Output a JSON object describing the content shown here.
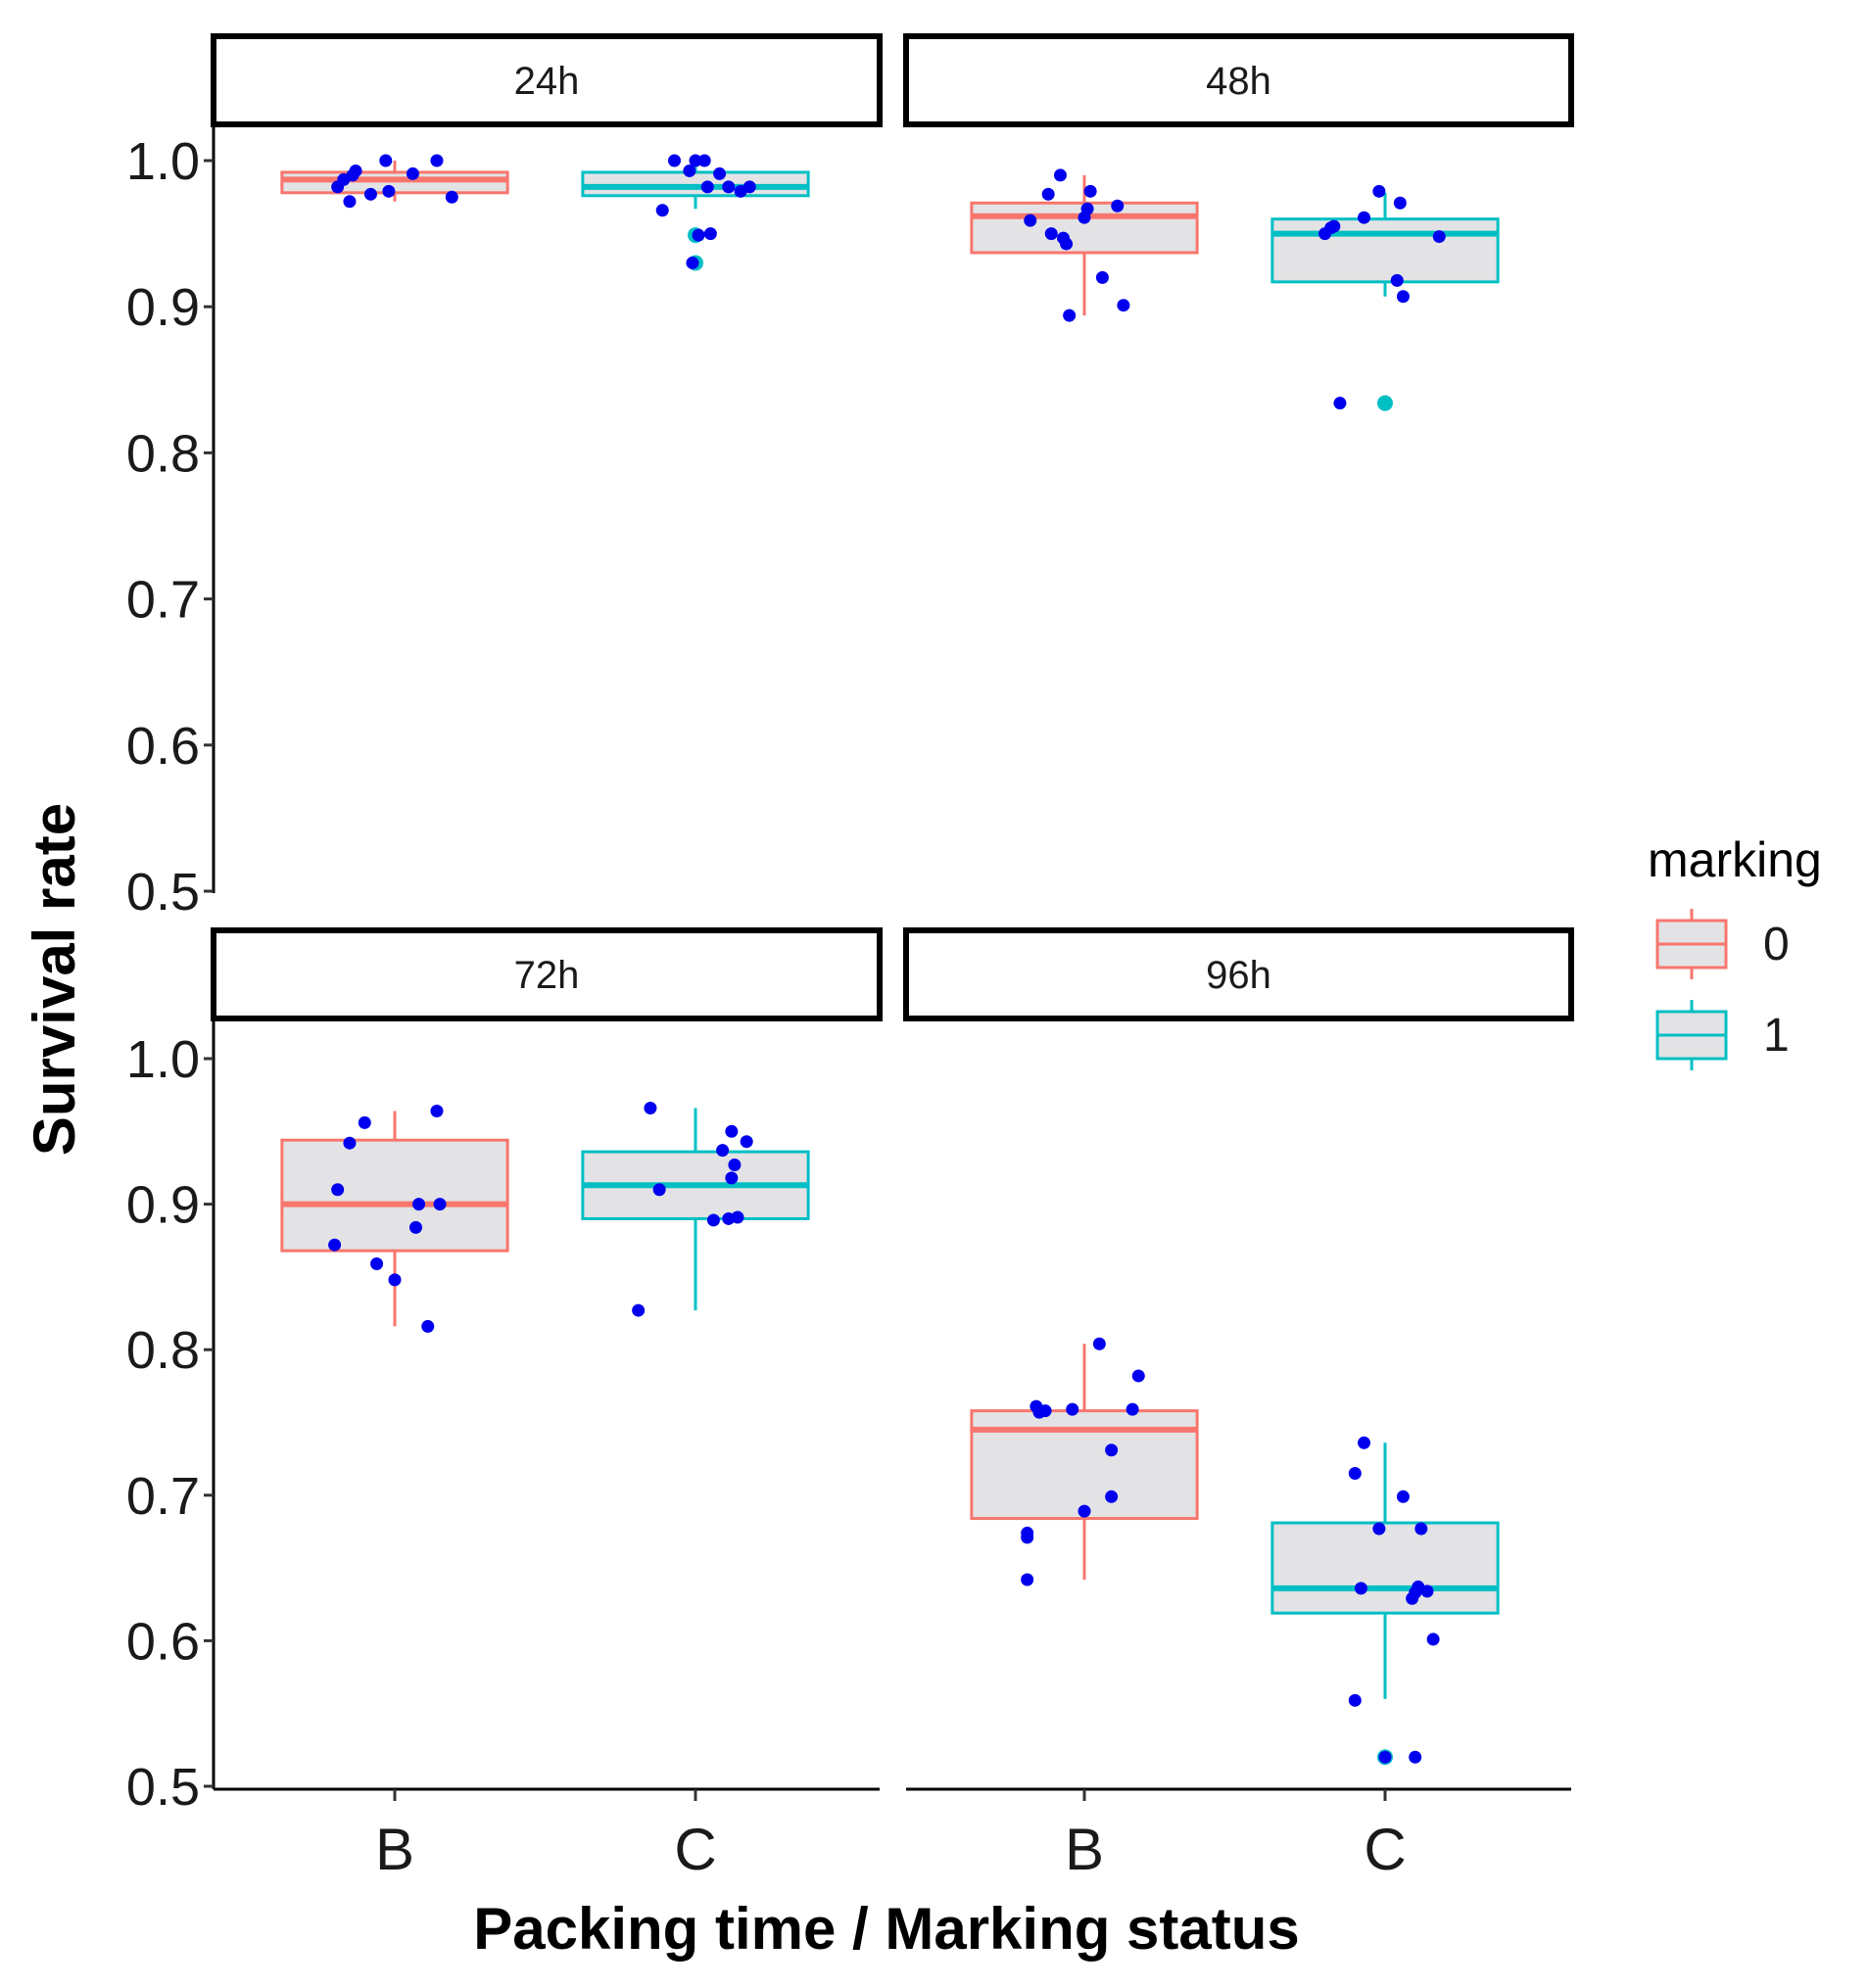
{
  "chart_data": {
    "type": "boxplot",
    "xlabel": "Packing time / Marking status",
    "ylabel": "Survival rate",
    "ylim": [
      0.5,
      1.0
    ],
    "yticks": [
      "0.5",
      "0.6",
      "0.7",
      "0.8",
      "0.9",
      "1.0"
    ],
    "categories": [
      "B",
      "C"
    ],
    "legend": {
      "title": "marking",
      "placement": "right",
      "entries": [
        {
          "label": "0",
          "color": "#F8766D"
        },
        {
          "label": "1",
          "color": "#00BFC4"
        }
      ]
    },
    "box_fill": "#E3E3E5",
    "point_color": "#0000EE",
    "panels": [
      {
        "label": "24h",
        "boxes": [
          {
            "category": "B",
            "marking": "0",
            "whisker_low": 0.972,
            "q1": 0.978,
            "median": 0.987,
            "q3": 0.992,
            "whisker_high": 1.0,
            "outliers": []
          },
          {
            "category": "C",
            "marking": "1",
            "whisker_low": 0.967,
            "q1": 0.976,
            "median": 0.982,
            "q3": 0.992,
            "whisker_high": 1.0,
            "outliers": [
              0.949,
              0.93
            ]
          }
        ],
        "points": [
          {
            "category": "B",
            "dx": -0.19,
            "y": 0.982
          },
          {
            "category": "B",
            "dx": -0.17,
            "y": 0.987
          },
          {
            "category": "B",
            "dx": -0.15,
            "y": 0.972
          },
          {
            "category": "B",
            "dx": -0.14,
            "y": 0.99
          },
          {
            "category": "B",
            "dx": -0.13,
            "y": 0.993
          },
          {
            "category": "B",
            "dx": -0.08,
            "y": 0.977
          },
          {
            "category": "B",
            "dx": -0.03,
            "y": 1.0
          },
          {
            "category": "B",
            "dx": -0.02,
            "y": 0.979
          },
          {
            "category": "B",
            "dx": 0.06,
            "y": 0.991
          },
          {
            "category": "B",
            "dx": 0.14,
            "y": 1.0
          },
          {
            "category": "B",
            "dx": 0.19,
            "y": 0.975
          },
          {
            "category": "C",
            "dx": -0.11,
            "y": 0.966
          },
          {
            "category": "C",
            "dx": -0.07,
            "y": 1.0
          },
          {
            "category": "C",
            "dx": -0.02,
            "y": 0.993
          },
          {
            "category": "C",
            "dx": -0.01,
            "y": 0.93
          },
          {
            "category": "C",
            "dx": 0.0,
            "y": 1.0
          },
          {
            "category": "C",
            "dx": 0.01,
            "y": 0.949
          },
          {
            "category": "C",
            "dx": 0.03,
            "y": 1.0
          },
          {
            "category": "C",
            "dx": 0.04,
            "y": 0.982
          },
          {
            "category": "C",
            "dx": 0.05,
            "y": 0.95
          },
          {
            "category": "C",
            "dx": 0.08,
            "y": 0.991
          },
          {
            "category": "C",
            "dx": 0.11,
            "y": 0.982
          },
          {
            "category": "C",
            "dx": 0.15,
            "y": 0.979
          },
          {
            "category": "C",
            "dx": 0.18,
            "y": 0.982
          }
        ]
      },
      {
        "label": "48h",
        "boxes": [
          {
            "category": "B",
            "marking": "0",
            "whisker_low": 0.894,
            "q1": 0.937,
            "median": 0.962,
            "q3": 0.971,
            "whisker_high": 0.99,
            "outliers": []
          },
          {
            "category": "C",
            "marking": "1",
            "whisker_low": 0.907,
            "q1": 0.917,
            "median": 0.95,
            "q3": 0.96,
            "whisker_high": 0.978,
            "outliers": [
              0.834
            ]
          }
        ],
        "points": [
          {
            "category": "B",
            "dx": -0.18,
            "y": 0.959
          },
          {
            "category": "B",
            "dx": -0.12,
            "y": 0.977
          },
          {
            "category": "B",
            "dx": -0.11,
            "y": 0.95
          },
          {
            "category": "B",
            "dx": -0.08,
            "y": 0.99
          },
          {
            "category": "B",
            "dx": -0.07,
            "y": 0.947
          },
          {
            "category": "B",
            "dx": -0.06,
            "y": 0.943
          },
          {
            "category": "B",
            "dx": -0.05,
            "y": 0.894
          },
          {
            "category": "B",
            "dx": 0.0,
            "y": 0.961
          },
          {
            "category": "B",
            "dx": 0.01,
            "y": 0.967
          },
          {
            "category": "B",
            "dx": 0.02,
            "y": 0.979
          },
          {
            "category": "B",
            "dx": 0.06,
            "y": 0.92
          },
          {
            "category": "B",
            "dx": 0.11,
            "y": 0.969
          },
          {
            "category": "B",
            "dx": 0.13,
            "y": 0.901
          },
          {
            "category": "C",
            "dx": -0.15,
            "y": 0.834
          },
          {
            "category": "C",
            "dx": -0.2,
            "y": 0.95
          },
          {
            "category": "C",
            "dx": -0.18,
            "y": 0.954
          },
          {
            "category": "C",
            "dx": -0.17,
            "y": 0.955
          },
          {
            "category": "C",
            "dx": -0.07,
            "y": 0.961
          },
          {
            "category": "C",
            "dx": -0.02,
            "y": 0.979
          },
          {
            "category": "C",
            "dx": 0.04,
            "y": 0.918
          },
          {
            "category": "C",
            "dx": 0.05,
            "y": 0.971
          },
          {
            "category": "C",
            "dx": 0.06,
            "y": 0.907
          },
          {
            "category": "C",
            "dx": 0.18,
            "y": 0.948
          }
        ]
      },
      {
        "label": "72h",
        "boxes": [
          {
            "category": "B",
            "marking": "0",
            "whisker_low": 0.816,
            "q1": 0.868,
            "median": 0.9,
            "q3": 0.944,
            "whisker_high": 0.964,
            "outliers": []
          },
          {
            "category": "C",
            "marking": "1",
            "whisker_low": 0.827,
            "q1": 0.89,
            "median": 0.913,
            "q3": 0.936,
            "whisker_high": 0.966,
            "outliers": []
          }
        ],
        "points": [
          {
            "category": "B",
            "dx": -0.2,
            "y": 0.872
          },
          {
            "category": "B",
            "dx": -0.19,
            "y": 0.91
          },
          {
            "category": "B",
            "dx": -0.15,
            "y": 0.942
          },
          {
            "category": "B",
            "dx": -0.1,
            "y": 0.956
          },
          {
            "category": "B",
            "dx": -0.06,
            "y": 0.859
          },
          {
            "category": "B",
            "dx": 0.0,
            "y": 0.848
          },
          {
            "category": "B",
            "dx": 0.07,
            "y": 0.884
          },
          {
            "category": "B",
            "dx": 0.08,
            "y": 0.9
          },
          {
            "category": "B",
            "dx": 0.11,
            "y": 0.816
          },
          {
            "category": "B",
            "dx": 0.14,
            "y": 0.964
          },
          {
            "category": "B",
            "dx": 0.15,
            "y": 0.9
          },
          {
            "category": "C",
            "dx": -0.19,
            "y": 0.827
          },
          {
            "category": "C",
            "dx": -0.15,
            "y": 0.966
          },
          {
            "category": "C",
            "dx": -0.12,
            "y": 0.91
          },
          {
            "category": "C",
            "dx": 0.06,
            "y": 0.889
          },
          {
            "category": "C",
            "dx": 0.09,
            "y": 0.937
          },
          {
            "category": "C",
            "dx": 0.11,
            "y": 0.89
          },
          {
            "category": "C",
            "dx": 0.12,
            "y": 0.95
          },
          {
            "category": "C",
            "dx": 0.12,
            "y": 0.918
          },
          {
            "category": "C",
            "dx": 0.13,
            "y": 0.927
          },
          {
            "category": "C",
            "dx": 0.14,
            "y": 0.891
          },
          {
            "category": "C",
            "dx": 0.17,
            "y": 0.943
          }
        ]
      },
      {
        "label": "96h",
        "boxes": [
          {
            "category": "B",
            "marking": "0",
            "whisker_low": 0.642,
            "q1": 0.684,
            "median": 0.745,
            "q3": 0.758,
            "whisker_high": 0.804,
            "outliers": []
          },
          {
            "category": "C",
            "marking": "1",
            "whisker_low": 0.56,
            "q1": 0.619,
            "median": 0.636,
            "q3": 0.681,
            "whisker_high": 0.736,
            "outliers": [
              0.52
            ]
          }
        ],
        "points": [
          {
            "category": "B",
            "dx": -0.19,
            "y": 0.674
          },
          {
            "category": "B",
            "dx": -0.19,
            "y": 0.671
          },
          {
            "category": "B",
            "dx": -0.19,
            "y": 0.642
          },
          {
            "category": "B",
            "dx": -0.16,
            "y": 0.761
          },
          {
            "category": "B",
            "dx": -0.15,
            "y": 0.757
          },
          {
            "category": "B",
            "dx": -0.13,
            "y": 0.758
          },
          {
            "category": "B",
            "dx": -0.04,
            "y": 0.759
          },
          {
            "category": "B",
            "dx": 0.0,
            "y": 0.689
          },
          {
            "category": "B",
            "dx": 0.05,
            "y": 0.804
          },
          {
            "category": "B",
            "dx": 0.09,
            "y": 0.731
          },
          {
            "category": "B",
            "dx": 0.09,
            "y": 0.699
          },
          {
            "category": "B",
            "dx": 0.16,
            "y": 0.759
          },
          {
            "category": "B",
            "dx": 0.18,
            "y": 0.782
          },
          {
            "category": "C",
            "dx": -0.1,
            "y": 0.715
          },
          {
            "category": "C",
            "dx": -0.1,
            "y": 0.559
          },
          {
            "category": "C",
            "dx": -0.08,
            "y": 0.636
          },
          {
            "category": "C",
            "dx": -0.07,
            "y": 0.736
          },
          {
            "category": "C",
            "dx": -0.02,
            "y": 0.677
          },
          {
            "category": "C",
            "dx": 0.0,
            "y": 0.52
          },
          {
            "category": "C",
            "dx": 0.06,
            "y": 0.699
          },
          {
            "category": "C",
            "dx": 0.09,
            "y": 0.629
          },
          {
            "category": "C",
            "dx": 0.1,
            "y": 0.633
          },
          {
            "category": "C",
            "dx": 0.11,
            "y": 0.637
          },
          {
            "category": "C",
            "dx": 0.12,
            "y": 0.677
          },
          {
            "category": "C",
            "dx": 0.14,
            "y": 0.634
          },
          {
            "category": "C",
            "dx": 0.16,
            "y": 0.601
          },
          {
            "category": "C",
            "dx": 0.1,
            "y": 0.52
          }
        ]
      }
    ]
  }
}
